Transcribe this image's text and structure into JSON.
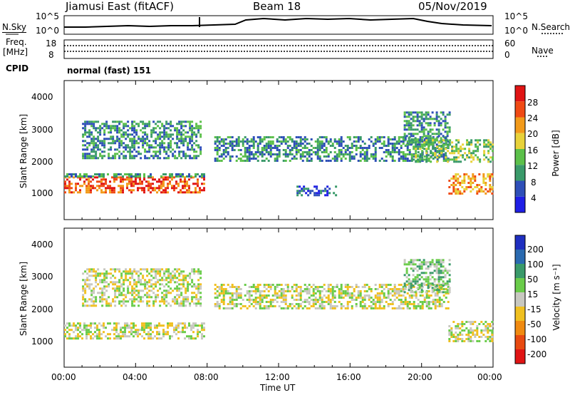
{
  "header": {
    "station": "Jiamusi East (fitACF)",
    "beam": "Beam 18",
    "date": "05/Nov/2019"
  },
  "noise_panel": {
    "left_label": "N.Sky",
    "right_label": "N.Search",
    "left_ticks": [
      "10^5",
      "10^0"
    ],
    "right_ticks": [
      "10^5",
      "10^0"
    ]
  },
  "freq_panel": {
    "left_label_line1": "Freq.",
    "left_label_line2": "[MHz]",
    "right_label": "Nave",
    "left_ticks": [
      "18",
      "8"
    ],
    "right_ticks": [
      "60",
      "0"
    ]
  },
  "cpid": {
    "label": "CPID",
    "value": "normal (fast) 151"
  },
  "colors": {
    "power_scale": [
      "#1f1fe6",
      "#2e4fb8",
      "#3a9a6a",
      "#5cc04a",
      "#e8d23a",
      "#f29a1a",
      "#f04a14",
      "#e01414"
    ],
    "velocity_scale": [
      "#1f2fc0",
      "#2a6ab0",
      "#3a9a6a",
      "#6acc4a",
      "#c8c8c0",
      "#f0c020",
      "#f08a10",
      "#e84a10",
      "#e01414"
    ]
  },
  "chart_data": [
    {
      "type": "heatmap",
      "name": "power",
      "ylabel": "Slant Range [km]",
      "ylim": [
        0,
        4500
      ],
      "y_ticks": [
        "4000",
        "3000",
        "2000",
        "1000"
      ],
      "colorbar_label": "Power [dB]",
      "colorbar_ticks": [
        "28",
        "24",
        "20",
        "16",
        "12",
        "8",
        "4"
      ],
      "regions": [
        {
          "t0": 0.0,
          "t1": 7.8,
          "r0": 900,
          "r1": 1400,
          "level": 6
        },
        {
          "t0": 0.0,
          "t1": 7.8,
          "r0": 1400,
          "r1": 1500,
          "level": 2
        },
        {
          "t0": 1.0,
          "t1": 7.6,
          "r0": 2000,
          "r1": 3200,
          "level": 2
        },
        {
          "t0": 8.4,
          "t1": 21.5,
          "r0": 1900,
          "r1": 2700,
          "level": 2
        },
        {
          "t0": 13.0,
          "t1": 15.2,
          "r0": 800,
          "r1": 1100,
          "level": 1
        },
        {
          "t0": 19.0,
          "t1": 21.6,
          "r0": 2400,
          "r1": 3500,
          "level": 2
        },
        {
          "t0": 19.5,
          "t1": 24.0,
          "r0": 1900,
          "r1": 2600,
          "level": 3
        },
        {
          "t0": 21.5,
          "t1": 24.0,
          "r0": 850,
          "r1": 1500,
          "level": 5
        }
      ]
    },
    {
      "type": "heatmap",
      "name": "velocity",
      "ylabel": "Slant Range [km]",
      "ylim": [
        0,
        4500
      ],
      "y_ticks": [
        "4000",
        "3000",
        "2000",
        "1000"
      ],
      "colorbar_label": "Velocity [m s⁻¹]",
      "colorbar_ticks": [
        "200",
        "100",
        "50",
        "15",
        "-15",
        "-50",
        "-100",
        "-200"
      ],
      "regions": [
        {
          "t0": 0.0,
          "t1": 7.8,
          "r0": 900,
          "r1": 1450,
          "level": 4
        },
        {
          "t0": 1.0,
          "t1": 7.6,
          "r0": 2000,
          "r1": 3200,
          "level": 4
        },
        {
          "t0": 8.4,
          "t1": 21.5,
          "r0": 1900,
          "r1": 2700,
          "level": 4
        },
        {
          "t0": 19.0,
          "t1": 21.6,
          "r0": 2400,
          "r1": 3500,
          "level": 3
        },
        {
          "t0": 21.5,
          "t1": 24.0,
          "r0": 850,
          "r1": 1500,
          "level": 4
        }
      ]
    }
  ],
  "x_axis": {
    "label": "Time UT",
    "ticks": [
      "00:00",
      "04:00",
      "08:00",
      "12:00",
      "16:00",
      "20:00",
      "00:00"
    ]
  }
}
